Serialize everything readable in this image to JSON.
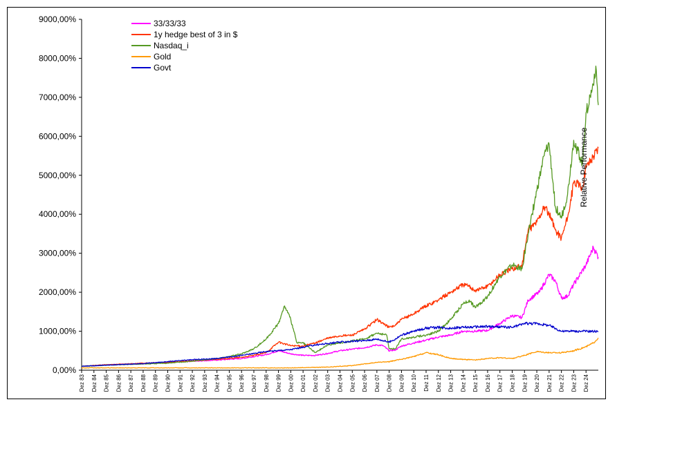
{
  "chart_data": {
    "type": "line",
    "title": "",
    "xlabel": "",
    "ylabel": "",
    "ylim": [
      0,
      9000
    ],
    "y_ticks": [
      "0,00%",
      "1000,00%",
      "2000,00%",
      "3000,00%",
      "4000,00%",
      "5000,00%",
      "6000,00%",
      "7000,00%",
      "8000,00%",
      "9000,00%"
    ],
    "x_ticks": [
      "Dez 83",
      "Dez 84",
      "Dez 85",
      "Dez 86",
      "Dez 87",
      "Dez 88",
      "Dez 89",
      "Dez 90",
      "Dez 91",
      "Dez 92",
      "Dez 93",
      "Dez 94",
      "Dez 95",
      "Dez 96",
      "Dez 97",
      "Dez 98",
      "Dez 99",
      "Dez 00",
      "Dez 01",
      "Dez 02",
      "Dez 03",
      "Dez 04",
      "Dez 05",
      "Dez 06",
      "Dez 07",
      "Dez 08",
      "Dez 09",
      "Dez 10",
      "Dez 11",
      "Dez 12",
      "Dez 13",
      "Dez 14",
      "Dez 15",
      "Dez 16",
      "Dez 17",
      "Dez 18",
      "Dez 19",
      "Dez 20",
      "Dez 21",
      "Dez 22",
      "Dez 23",
      "Dez 24"
    ],
    "x_years": [
      1983,
      2025
    ],
    "grid": "none",
    "legend_position": "top-left",
    "annotation": "Relative Performance",
    "series": [
      {
        "name": "33/33/33",
        "color": "#ff00ff",
        "points": [
          [
            1983,
            100
          ],
          [
            1985,
            140
          ],
          [
            1988,
            170
          ],
          [
            1990,
            200
          ],
          [
            1992,
            230
          ],
          [
            1994,
            260
          ],
          [
            1996,
            300
          ],
          [
            1998,
            400
          ],
          [
            1999,
            500
          ],
          [
            2000,
            420
          ],
          [
            2001,
            380
          ],
          [
            2002,
            380
          ],
          [
            2003,
            430
          ],
          [
            2004,
            500
          ],
          [
            2005,
            540
          ],
          [
            2006,
            580
          ],
          [
            2007,
            650
          ],
          [
            2007.5,
            630
          ],
          [
            2008,
            500
          ],
          [
            2008.5,
            520
          ],
          [
            2009,
            620
          ],
          [
            2010,
            700
          ],
          [
            2011,
            770
          ],
          [
            2012,
            850
          ],
          [
            2013,
            900
          ],
          [
            2014,
            1000
          ],
          [
            2015,
            1000
          ],
          [
            2016,
            1020
          ],
          [
            2017,
            1200
          ],
          [
            2018,
            1400
          ],
          [
            2018.8,
            1350
          ],
          [
            2019.3,
            1800
          ],
          [
            2020.2,
            2000
          ],
          [
            2021,
            2450
          ],
          [
            2021.5,
            2300
          ],
          [
            2022,
            1850
          ],
          [
            2022.5,
            1900
          ],
          [
            2023,
            2200
          ],
          [
            2024,
            2700
          ],
          [
            2024.6,
            3150
          ],
          [
            2025,
            2900
          ]
        ]
      },
      {
        "name": "1y hedge best of 3 in $",
        "color": "#ff3300",
        "points": [
          [
            1983,
            100
          ],
          [
            1985,
            140
          ],
          [
            1988,
            180
          ],
          [
            1990,
            200
          ],
          [
            1992,
            240
          ],
          [
            1994,
            280
          ],
          [
            1996,
            330
          ],
          [
            1997,
            380
          ],
          [
            1998,
            450
          ],
          [
            1999,
            720
          ],
          [
            2000,
            630
          ],
          [
            2001,
            620
          ],
          [
            2002,
            700
          ],
          [
            2003,
            820
          ],
          [
            2004,
            880
          ],
          [
            2005,
            900
          ],
          [
            2006,
            1050
          ],
          [
            2007,
            1300
          ],
          [
            2008,
            1100
          ],
          [
            2008.5,
            1150
          ],
          [
            2009,
            1300
          ],
          [
            2010,
            1450
          ],
          [
            2011,
            1650
          ],
          [
            2012,
            1800
          ],
          [
            2013,
            2000
          ],
          [
            2014,
            2200
          ],
          [
            2014.5,
            2150
          ],
          [
            2015,
            2050
          ],
          [
            2016,
            2150
          ],
          [
            2017,
            2450
          ],
          [
            2018,
            2600
          ],
          [
            2018.8,
            2700
          ],
          [
            2019.3,
            3600
          ],
          [
            2020,
            3800
          ],
          [
            2020.6,
            4200
          ],
          [
            2021,
            4000
          ],
          [
            2021.5,
            3600
          ],
          [
            2022,
            3400
          ],
          [
            2022.5,
            3900
          ],
          [
            2023,
            4800
          ],
          [
            2023.7,
            4700
          ],
          [
            2024,
            5200
          ],
          [
            2024.6,
            5500
          ],
          [
            2025,
            5700
          ]
        ]
      },
      {
        "name": "Nasdaq_i",
        "color": "#559922",
        "points": [
          [
            1983,
            100
          ],
          [
            1985,
            130
          ],
          [
            1988,
            160
          ],
          [
            1990,
            180
          ],
          [
            1992,
            230
          ],
          [
            1994,
            300
          ],
          [
            1995,
            350
          ],
          [
            1996,
            420
          ],
          [
            1997,
            550
          ],
          [
            1998,
            800
          ],
          [
            1999,
            1200
          ],
          [
            1999.5,
            1650
          ],
          [
            2000,
            1300
          ],
          [
            2000.5,
            700
          ],
          [
            2001,
            700
          ],
          [
            2002,
            450
          ],
          [
            2003,
            650
          ],
          [
            2004,
            700
          ],
          [
            2005,
            750
          ],
          [
            2006,
            800
          ],
          [
            2007,
            950
          ],
          [
            2007.8,
            900
          ],
          [
            2008,
            550
          ],
          [
            2008.5,
            550
          ],
          [
            2009,
            800
          ],
          [
            2010,
            850
          ],
          [
            2011,
            900
          ],
          [
            2012,
            1000
          ],
          [
            2013,
            1300
          ],
          [
            2014,
            1700
          ],
          [
            2014.5,
            1800
          ],
          [
            2015,
            1600
          ],
          [
            2016,
            1900
          ],
          [
            2017,
            2400
          ],
          [
            2018,
            2700
          ],
          [
            2018.8,
            2600
          ],
          [
            2019.3,
            3500
          ],
          [
            2020,
            4600
          ],
          [
            2020.6,
            5500
          ],
          [
            2021,
            5800
          ],
          [
            2021.5,
            4200
          ],
          [
            2022,
            3900
          ],
          [
            2022.5,
            4500
          ],
          [
            2023,
            5900
          ],
          [
            2023.7,
            5300
          ],
          [
            2024,
            6600
          ],
          [
            2024.5,
            7200
          ],
          [
            2024.8,
            7800
          ],
          [
            2025,
            6800
          ]
        ]
      },
      {
        "name": "Gold",
        "color": "#ff9900",
        "points": [
          [
            1983,
            60
          ],
          [
            1985,
            60
          ],
          [
            1990,
            60
          ],
          [
            1995,
            60
          ],
          [
            2000,
            60
          ],
          [
            2003,
            80
          ],
          [
            2005,
            120
          ],
          [
            2007,
            200
          ],
          [
            2008,
            220
          ],
          [
            2009,
            280
          ],
          [
            2010,
            350
          ],
          [
            2011,
            450
          ],
          [
            2012,
            400
          ],
          [
            2013,
            300
          ],
          [
            2014,
            280
          ],
          [
            2015,
            260
          ],
          [
            2016,
            300
          ],
          [
            2017,
            320
          ],
          [
            2018,
            300
          ],
          [
            2019,
            380
          ],
          [
            2020,
            480
          ],
          [
            2021,
            450
          ],
          [
            2022,
            450
          ],
          [
            2023,
            500
          ],
          [
            2024,
            600
          ],
          [
            2024.6,
            700
          ],
          [
            2025,
            830
          ]
        ]
      },
      {
        "name": "Govt",
        "color": "#0000cc",
        "points": [
          [
            1983,
            100
          ],
          [
            1985,
            130
          ],
          [
            1988,
            170
          ],
          [
            1990,
            220
          ],
          [
            1992,
            270
          ],
          [
            1994,
            300
          ],
          [
            1996,
            380
          ],
          [
            1998,
            480
          ],
          [
            2000,
            530
          ],
          [
            2002,
            650
          ],
          [
            2004,
            720
          ],
          [
            2006,
            760
          ],
          [
            2007,
            800
          ],
          [
            2008,
            720
          ],
          [
            2008.5,
            800
          ],
          [
            2009,
            900
          ],
          [
            2010,
            1000
          ],
          [
            2011,
            1080
          ],
          [
            2012,
            1100
          ],
          [
            2013,
            1080
          ],
          [
            2014,
            1100
          ],
          [
            2016,
            1120
          ],
          [
            2018,
            1100
          ],
          [
            2019,
            1200
          ],
          [
            2020,
            1200
          ],
          [
            2021,
            1150
          ],
          [
            2022,
            1000
          ],
          [
            2023,
            1000
          ],
          [
            2024,
            1000
          ],
          [
            2025,
            1000
          ]
        ]
      }
    ]
  }
}
